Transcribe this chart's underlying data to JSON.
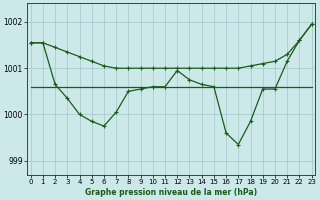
{
  "title": "Graphe pression niveau de la mer (hPa)",
  "background_color": "#cce8e8",
  "grid_color": "#aacccc",
  "line_color": "#1a5c1a",
  "x_ticks": [
    0,
    1,
    2,
    3,
    4,
    5,
    6,
    7,
    8,
    9,
    10,
    11,
    12,
    13,
    14,
    15,
    16,
    17,
    18,
    19,
    20,
    21,
    22,
    23
  ],
  "y_ticks": [
    999,
    1000,
    1001,
    1002
  ],
  "ylim": [
    998.7,
    1002.4
  ],
  "xlim": [
    -0.3,
    23.3
  ],
  "line1_x": [
    0,
    1,
    2,
    3,
    4,
    5,
    6,
    7,
    8,
    9,
    10,
    11,
    12,
    13,
    14,
    15,
    16,
    17,
    18,
    19,
    20,
    21,
    22,
    23
  ],
  "line1_y": [
    1001.55,
    1001.55,
    1001.45,
    1001.35,
    1001.25,
    1001.15,
    1001.05,
    1001.0,
    1001.0,
    1001.0,
    1001.0,
    1001.0,
    1001.0,
    1001.0,
    1001.0,
    1001.0,
    1001.0,
    1001.0,
    1001.05,
    1001.1,
    1001.15,
    1001.3,
    1001.6,
    1001.95
  ],
  "line2_x": [
    0,
    1,
    2,
    3,
    4,
    5,
    6,
    7,
    8,
    9,
    10,
    11,
    12,
    13,
    14,
    15,
    16,
    17,
    18,
    19,
    20,
    21,
    22,
    23
  ],
  "line2_y": [
    1000.6,
    1000.6,
    1000.6,
    1000.6,
    1000.6,
    1000.6,
    1000.6,
    1000.6,
    1000.6,
    1000.6,
    1000.6,
    1000.6,
    1000.6,
    1000.6,
    1000.6,
    1000.6,
    1000.6,
    1000.6,
    1000.6,
    1000.6,
    1000.6,
    1000.6,
    1000.6,
    1000.6
  ],
  "line3_x": [
    0,
    1,
    2,
    3,
    4,
    5,
    6,
    7,
    8,
    9,
    10,
    11,
    12,
    13,
    14,
    15,
    16,
    17,
    18,
    19,
    20,
    21,
    22,
    23
  ],
  "line3_y": [
    1001.55,
    1001.55,
    1000.65,
    1000.35,
    1000.0,
    999.85,
    999.75,
    1000.05,
    1000.5,
    1000.55,
    1000.6,
    1000.6,
    1000.95,
    1000.75,
    1000.65,
    1000.6,
    999.6,
    999.35,
    999.85,
    1000.55,
    1000.55,
    1001.15,
    1001.6,
    1001.95
  ]
}
